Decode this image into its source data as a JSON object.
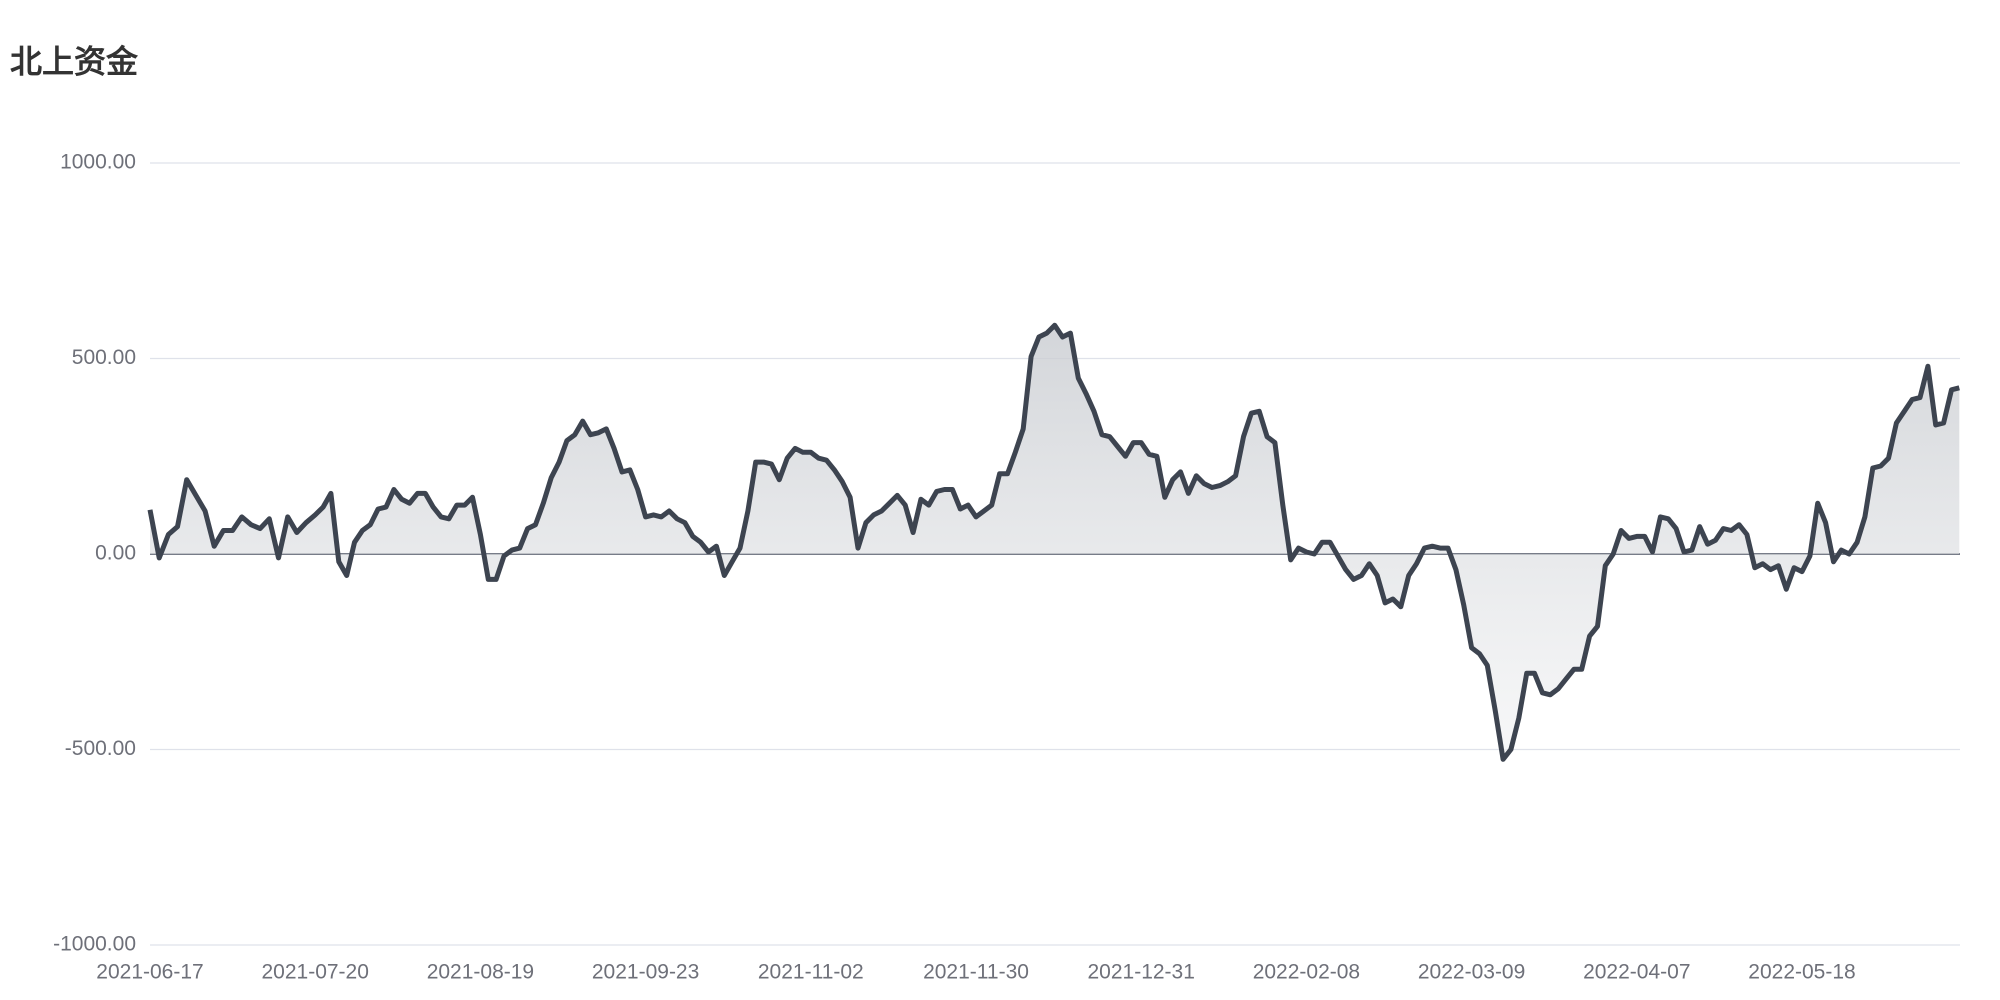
{
  "chart_data": {
    "type": "line",
    "title": "北上资金",
    "categories": [
      "2021-06-17",
      null,
      null,
      null,
      null,
      null,
      null,
      null,
      null,
      null,
      null,
      null,
      null,
      null,
      null,
      null,
      null,
      null,
      "2021-07-20",
      null,
      null,
      null,
      null,
      null,
      null,
      null,
      null,
      null,
      null,
      null,
      null,
      null,
      null,
      null,
      null,
      null,
      null,
      null,
      null,
      "2021-08-19",
      null,
      null,
      null,
      null,
      null,
      null,
      null,
      null,
      null,
      null,
      null,
      null,
      null,
      null,
      null,
      null,
      null,
      null,
      null,
      null,
      "2021-09-23",
      null,
      null,
      null,
      null,
      null,
      null,
      null,
      null,
      null,
      null,
      null,
      null,
      null,
      null,
      null,
      null,
      null,
      null,
      null,
      null,
      "2021-11-02",
      null,
      null,
      null,
      null,
      null,
      null,
      null,
      null,
      null,
      null,
      null,
      null,
      null,
      null,
      null,
      null,
      null,
      null,
      null,
      null,
      "2021-11-30",
      null,
      null,
      null,
      null,
      null,
      null,
      null,
      null,
      null,
      null,
      null,
      null,
      null,
      null,
      null,
      null,
      null,
      null,
      null,
      null,
      "2021-12-31",
      null,
      null,
      null,
      null,
      null,
      null,
      null,
      null,
      null,
      null,
      null,
      null,
      null,
      null,
      null,
      null,
      null,
      null,
      null,
      null,
      "2022-02-08",
      null,
      null,
      null,
      null,
      null,
      null,
      null,
      null,
      null,
      null,
      null,
      null,
      null,
      null,
      null,
      null,
      null,
      null,
      null,
      null,
      "2022-03-09",
      null,
      null,
      null,
      null,
      null,
      null,
      null,
      null,
      null,
      null,
      null,
      null,
      null,
      null,
      null,
      null,
      null,
      null,
      null,
      null,
      "2022-04-07",
      null,
      null,
      null,
      null,
      null,
      null,
      null,
      null,
      null,
      null,
      null,
      null,
      null,
      null,
      null,
      null,
      null,
      null,
      null,
      null,
      "2022-05-18",
      null,
      null,
      null,
      null,
      null,
      null,
      null,
      null,
      null,
      null,
      null,
      null,
      null,
      null,
      null,
      null,
      null,
      null,
      null,
      null
    ],
    "values": [
      113,
      -10,
      50,
      70,
      190,
      150,
      110,
      20,
      60,
      60,
      95,
      75,
      65,
      90,
      -10,
      95,
      55,
      80,
      100,
      120,
      155,
      -20,
      -55,
      30,
      60,
      75,
      115,
      120,
      165,
      140,
      130,
      155,
      155,
      120,
      95,
      90,
      125,
      125,
      145,
      50,
      -65,
      -65,
      -5,
      10,
      15,
      65,
      75,
      130,
      195,
      235,
      290,
      305,
      340,
      305,
      310,
      320,
      270,
      210,
      215,
      165,
      95,
      100,
      95,
      110,
      90,
      80,
      45,
      30,
      5,
      20,
      -55,
      -20,
      15,
      110,
      235,
      235,
      230,
      190,
      245,
      270,
      260,
      260,
      245,
      240,
      215,
      185,
      145,
      15,
      80,
      100,
      110,
      130,
      150,
      125,
      55,
      140,
      125,
      160,
      165,
      165,
      115,
      125,
      95,
      110,
      125,
      205,
      205,
      260,
      320,
      505,
      555,
      565,
      585,
      555,
      565,
      450,
      410,
      365,
      305,
      300,
      275,
      250,
      285,
      285,
      255,
      250,
      145,
      190,
      210,
      155,
      200,
      180,
      170,
      175,
      185,
      200,
      300,
      360,
      365,
      300,
      285,
      125,
      -15,
      15,
      5,
      0,
      30,
      30,
      -5,
      -40,
      -65,
      -55,
      -25,
      -55,
      -125,
      -115,
      -135,
      -55,
      -25,
      15,
      20,
      15,
      15,
      -40,
      -130,
      -240,
      -255,
      -285,
      -400,
      -525,
      -500,
      -420,
      -305,
      -305,
      -355,
      -360,
      -345,
      -320,
      -295,
      -295,
      -210,
      -185,
      -30,
      0,
      60,
      40,
      45,
      45,
      5,
      95,
      90,
      65,
      5,
      10,
      70,
      25,
      35,
      65,
      60,
      75,
      50,
      -35,
      -25,
      -40,
      -30,
      -90,
      -35,
      -45,
      -5,
      130,
      80,
      -20,
      10,
      0,
      30,
      95,
      220,
      225,
      245,
      335,
      365,
      395,
      400,
      480,
      330,
      335,
      420,
      425
    ],
    "color": "#3d4450",
    "ylim": [
      -1000,
      1000
    ],
    "yticks": [
      {
        "value": -1000,
        "label": "-1000.00"
      },
      {
        "value": -500,
        "label": "-500.00"
      },
      {
        "value": 0,
        "label": "0.00"
      },
      {
        "value": 500,
        "label": "500.00"
      },
      {
        "value": 1000,
        "label": "1000.00"
      }
    ],
    "grid": true,
    "area": true
  }
}
